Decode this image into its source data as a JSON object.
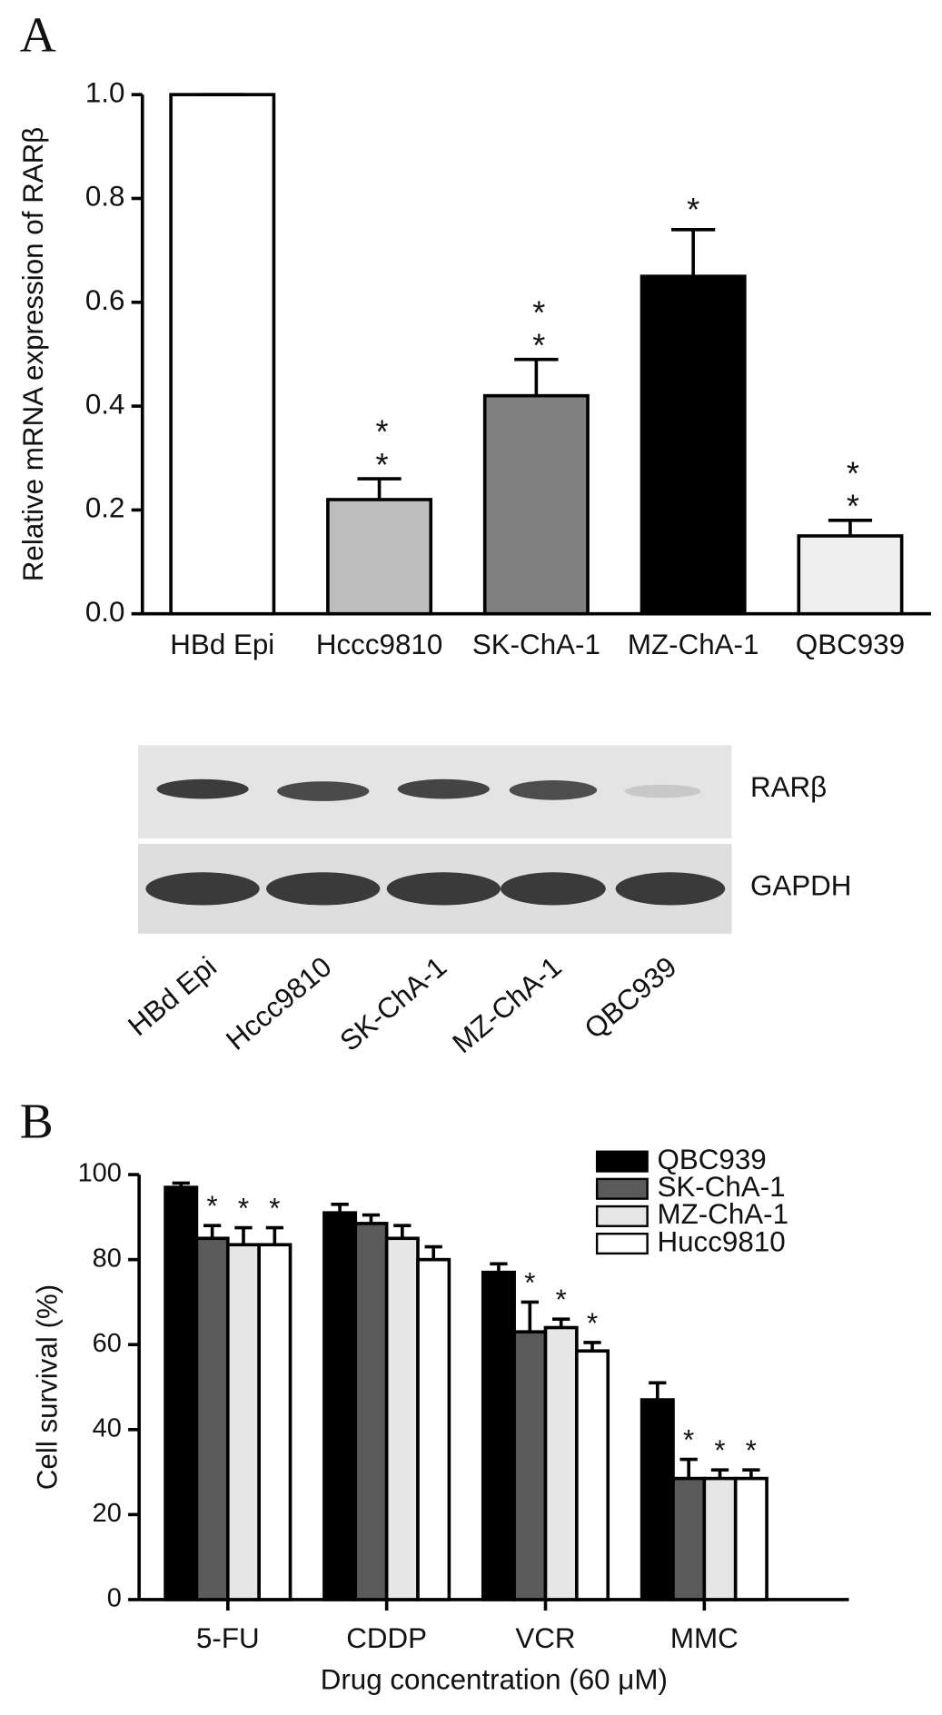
{
  "panel_labels": [
    "A",
    "B"
  ],
  "chart_data": [
    {
      "type": "bar",
      "ylabel": "Relative mRNA expression of RARβ",
      "categories": [
        "HBd Epi",
        "Hccc9810",
        "SK-ChA-1",
        "MZ-ChA-1",
        "QBC939"
      ],
      "values": [
        1.0,
        0.22,
        0.42,
        0.65,
        0.15
      ],
      "errors": [
        0,
        0.04,
        0.07,
        0.09,
        0.03
      ],
      "colors": [
        "#ffffff",
        "#bdbdbd",
        "#808080",
        "#000000",
        "#efefef"
      ],
      "significance": [
        null,
        "**",
        "**",
        "*",
        "**"
      ],
      "ylim": [
        0,
        1.0
      ],
      "yticks": [
        {
          "value": 0,
          "label": "0.0"
        },
        0.2,
        0.4,
        0.6,
        0.8,
        {
          "value": 1,
          "label": "1.0"
        }
      ]
    },
    {
      "type": "bar",
      "ylabel": "Cell survival (%)",
      "xlabel": "Drug concentration (60 μM)",
      "categories": [
        "5-FU",
        "CDDP",
        "VCR",
        "MMC"
      ],
      "series": [
        {
          "name": "QBC939",
          "color": "#000000",
          "values": [
            97,
            91,
            77,
            47
          ],
          "errors": [
            1,
            2,
            2,
            4
          ]
        },
        {
          "name": "SK-ChA-1",
          "color": "#5a5a5a",
          "values": [
            85,
            88.5,
            63,
            28.5
          ],
          "errors": [
            3,
            2,
            7,
            4.5
          ],
          "significance": [
            "*",
            null,
            "*",
            "*"
          ]
        },
        {
          "name": "MZ-ChA-1",
          "color": "#e6e6e6",
          "values": [
            83.5,
            85,
            64,
            28.5
          ],
          "errors": [
            4,
            3,
            2,
            2
          ],
          "significance": [
            "*",
            null,
            "*",
            "*"
          ]
        },
        {
          "name": "Hucc9810",
          "color": "#ffffff",
          "values": [
            83.5,
            80,
            58.5,
            28.5
          ],
          "errors": [
            4,
            3,
            2,
            2
          ],
          "significance": [
            "*",
            null,
            "*",
            "*"
          ]
        }
      ],
      "ylim": [
        0,
        100
      ],
      "yticks": [
        0,
        20,
        40,
        60,
        80,
        100
      ],
      "legend": "upper right"
    }
  ],
  "blot": {
    "rows": [
      "RARβ",
      "GAPDH"
    ],
    "lanes": [
      "HBd Epi",
      "Hccc9810",
      "SK-ChA-1",
      "MZ-ChA-1",
      "QBC939"
    ]
  }
}
